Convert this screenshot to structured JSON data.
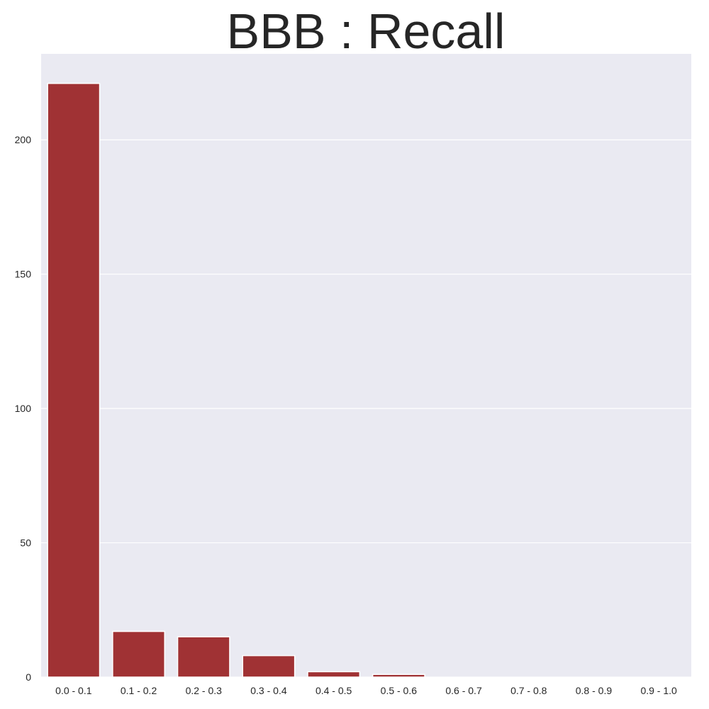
{
  "chart_data": {
    "type": "bar",
    "title": "BBB : Recall",
    "xlabel": "",
    "ylabel": "",
    "categories": [
      "0.0 - 0.1",
      "0.1 - 0.2",
      "0.2 - 0.3",
      "0.3 - 0.4",
      "0.4 - 0.5",
      "0.5 - 0.6",
      "0.6 - 0.7",
      "0.7 - 0.8",
      "0.8 - 0.9",
      "0.9 - 1.0"
    ],
    "values": [
      221,
      17,
      15,
      8,
      2,
      1,
      0,
      0,
      0,
      0
    ],
    "ylim": [
      0,
      232
    ],
    "yticks": [
      0,
      50,
      100,
      150,
      200
    ],
    "grid": true,
    "colors": {
      "bar": "#a03234",
      "background": "#eaeaf2",
      "grid": "#ffffff",
      "text": "#262626"
    }
  }
}
